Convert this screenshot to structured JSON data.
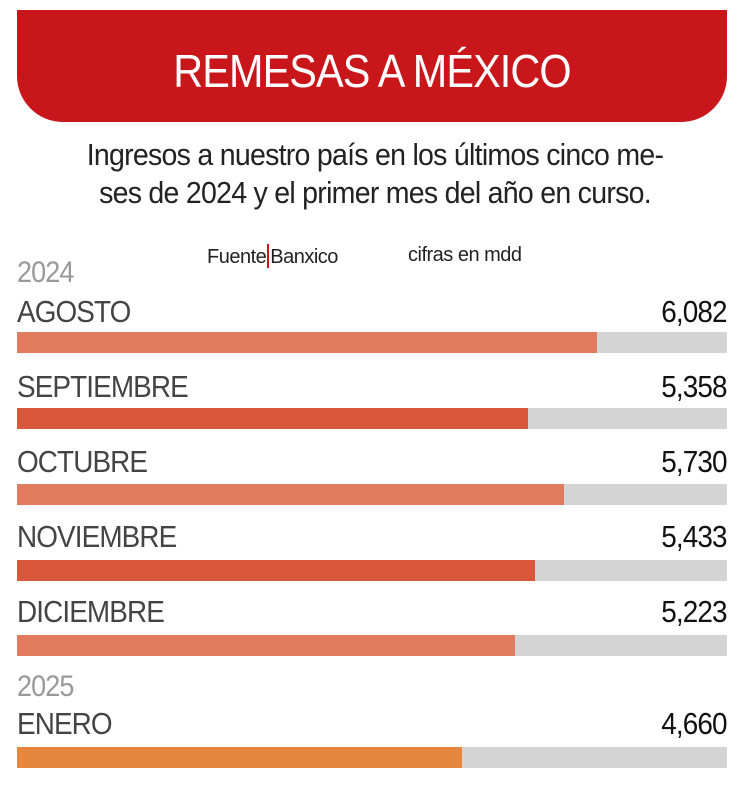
{
  "header": {
    "title": "REMESAS A MÉXICO",
    "color": "#c8161a"
  },
  "subtitle": [
    "Ingresos a nuestro país en los últimos cinco me-",
    "ses de 2024 y el primer mes del año en curso."
  ],
  "source": {
    "label": "Fuente",
    "name": "Banxico",
    "units": "cifras en mdd"
  },
  "chart_data": {
    "type": "bar",
    "orientation": "horizontal",
    "title": "REMESAS A MÉXICO",
    "xlim": [
      0,
      7440
    ],
    "groups": [
      {
        "year": "2024",
        "items": [
          {
            "category": "AGOSTO",
            "value": 6082,
            "label": "6,082",
            "color": "#e07b5f"
          },
          {
            "category": "SEPTIEMBRE",
            "value": 5358,
            "label": "5,358",
            "color": "#d9573d"
          },
          {
            "category": "OCTUBRE",
            "value": 5730,
            "label": "5,730",
            "color": "#e07b5f"
          },
          {
            "category": "NOVIEMBRE",
            "value": 5433,
            "label": "5,433",
            "color": "#d9573d"
          },
          {
            "category": "DICIEMBRE",
            "value": 5223,
            "label": "5,223",
            "color": "#e07b5f"
          }
        ]
      },
      {
        "year": "2025",
        "items": [
          {
            "category": "ENERO",
            "value": 4660,
            "label": "4,660",
            "color": "#e5873f"
          }
        ]
      }
    ],
    "track_color": "#d4d4d4"
  }
}
